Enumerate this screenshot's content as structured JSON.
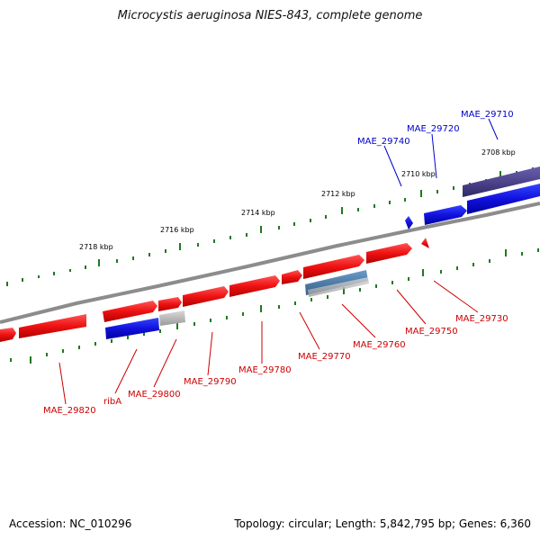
{
  "title": "Microcystis aeruginosa NIES-843, complete genome",
  "footer": {
    "accession": "Accession: NC_010296",
    "summary": "Topology: circular; Length: 5,842,795 bp; Genes: 6,360"
  },
  "colors": {
    "backbone": "#8c8c8c",
    "tick": "#1f7a1f",
    "forward_gene": "#ee1111",
    "reverse_gene": "#1111dd",
    "forward_label": "#cc0000",
    "reverse_label": "#0000cc",
    "pseudo_gene": "#b0b0b0",
    "rna_gene": "#4a7aa8",
    "other_gene": "#4a3f8a"
  },
  "kbp_labels": {
    "k2708": "2708 kbp",
    "k2710": "2710 kbp",
    "k2712": "2712 kbp",
    "k2714": "2714 kbp",
    "k2716": "2716 kbp",
    "k2718": "2718 kbp"
  },
  "genes": {
    "mae29710": "MAE_29710",
    "mae29720": "MAE_29720",
    "mae29740": "MAE_29740",
    "mae29730": "MAE_29730",
    "mae29750": "MAE_29750",
    "mae29760": "MAE_29760",
    "mae29770": "MAE_29770",
    "mae29780": "MAE_29780",
    "mae29790": "MAE_29790",
    "mae29800": "MAE_29800",
    "ribA": "ribA",
    "mae29820": "MAE_29820"
  }
}
